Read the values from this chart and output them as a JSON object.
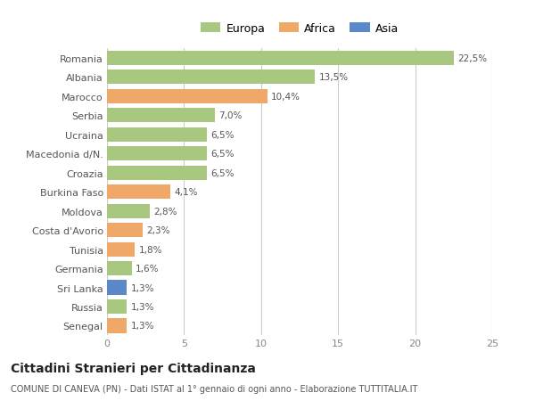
{
  "categories": [
    "Romania",
    "Albania",
    "Marocco",
    "Serbia",
    "Ucraina",
    "Macedonia d/N.",
    "Croazia",
    "Burkina Faso",
    "Moldova",
    "Costa d'Avorio",
    "Tunisia",
    "Germania",
    "Sri Lanka",
    "Russia",
    "Senegal"
  ],
  "values": [
    22.5,
    13.5,
    10.4,
    7.0,
    6.5,
    6.5,
    6.5,
    4.1,
    2.8,
    2.3,
    1.8,
    1.6,
    1.3,
    1.3,
    1.3
  ],
  "labels": [
    "22,5%",
    "13,5%",
    "10,4%",
    "7,0%",
    "6,5%",
    "6,5%",
    "6,5%",
    "4,1%",
    "2,8%",
    "2,3%",
    "1,8%",
    "1,6%",
    "1,3%",
    "1,3%",
    "1,3%"
  ],
  "continents": [
    "Europa",
    "Europa",
    "Africa",
    "Europa",
    "Europa",
    "Europa",
    "Europa",
    "Africa",
    "Europa",
    "Africa",
    "Africa",
    "Europa",
    "Asia",
    "Europa",
    "Africa"
  ],
  "colors": {
    "Europa": "#a8c880",
    "Africa": "#f0a868",
    "Asia": "#5b88c8"
  },
  "legend_entries": [
    "Europa",
    "Africa",
    "Asia"
  ],
  "title": "Cittadini Stranieri per Cittadinanza",
  "subtitle": "COMUNE DI CANEVA (PN) - Dati ISTAT al 1° gennaio di ogni anno - Elaborazione TUTTITALIA.IT",
  "xlim": [
    0,
    25
  ],
  "xticks": [
    0,
    5,
    10,
    15,
    20,
    25
  ],
  "background_color": "#ffffff",
  "grid_color": "#cccccc",
  "bar_height": 0.75
}
